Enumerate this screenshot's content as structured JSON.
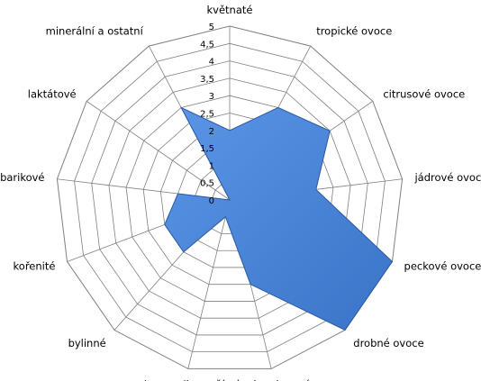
{
  "chart_data": {
    "type": "radar",
    "categories": [
      "květnaté",
      "tropické ovoce",
      "citrusové ovoce",
      "jádrové ovoce",
      "peckové ovoce",
      "drobné ovoce",
      "sušené a kandované ovoce",
      "karamelizované",
      "bylinné",
      "kořenité",
      "barikové",
      "laktátové",
      "minerální a ostatní"
    ],
    "values": [
      2,
      3,
      3.5,
      2.5,
      5,
      5,
      2.5,
      0.5,
      2,
      2,
      1.5,
      0,
      3
    ],
    "ticks": [
      "0",
      "0,5",
      "1",
      "1,5",
      "2",
      "2,5",
      "3",
      "3,5",
      "4",
      "4,5",
      "5"
    ],
    "rmin": 0,
    "rmax": 5,
    "series_color": "#4a86d8",
    "series_edge_color": "#2c5aa0",
    "grid_color": "#808080",
    "grid": true,
    "legend": false
  }
}
